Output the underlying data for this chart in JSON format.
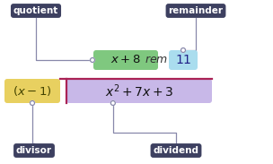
{
  "bg_color": "#ffffff",
  "quotient_label": "quotient",
  "remainder_label": "remainder",
  "divisor_label": "divisor",
  "dividend_label": "dividend",
  "label_bg": "#3d4060",
  "label_fg": "#ffffff",
  "quotient_box_color": "#7fc87f",
  "remainder_box_color": "#aaddee",
  "divisor_box_color": "#e8d060",
  "dividend_box_color": "#c8b8e8",
  "division_bar_color": "#aa2255",
  "connector_color": "#8888aa",
  "figw": 3.04,
  "figh": 1.83,
  "dpi": 100
}
